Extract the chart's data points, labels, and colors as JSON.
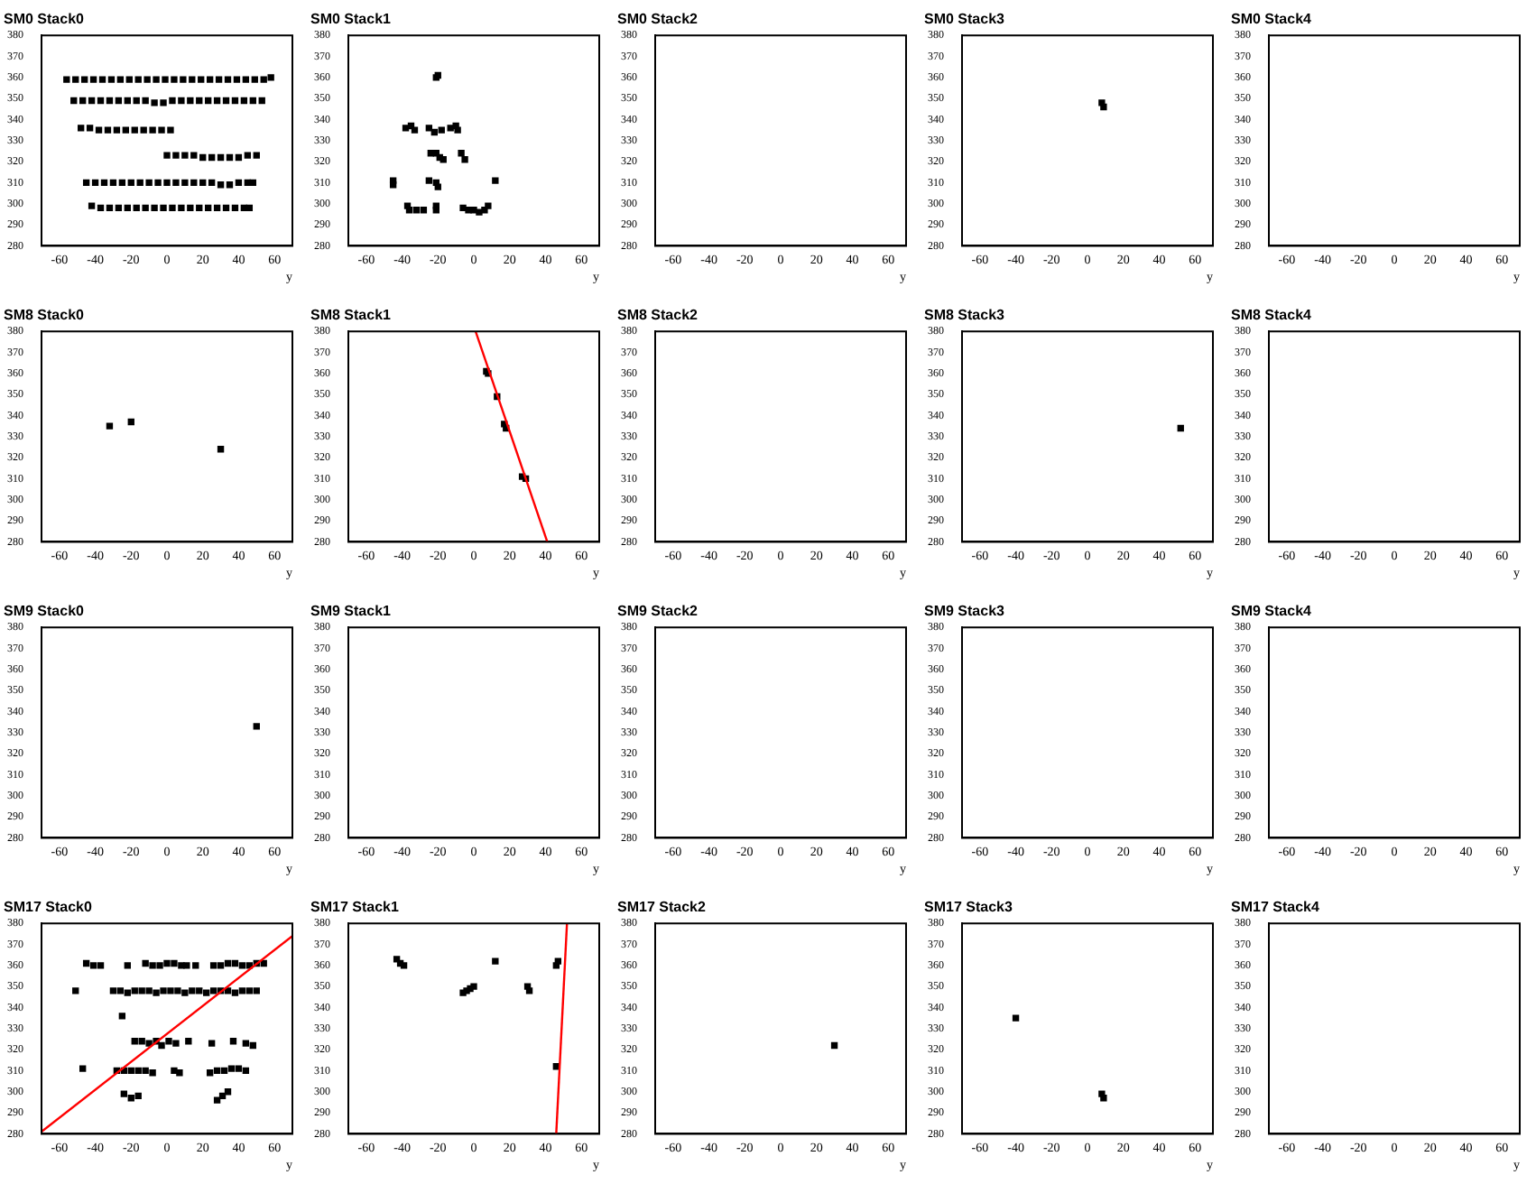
{
  "chart_data": [
    {
      "type": "scatter",
      "title": "SM0 Stack0",
      "xlabel": "y",
      "xlim": [
        -70,
        70
      ],
      "xticks": [
        -60,
        -40,
        -20,
        0,
        20,
        40,
        60
      ],
      "ylim": [
        280,
        380
      ],
      "yticks": [
        280,
        290,
        300,
        310,
        320,
        330,
        340,
        350,
        360,
        370,
        380
      ],
      "marker": "square",
      "series": [
        {
          "color": "#000000",
          "x": [
            -56,
            -51,
            -46,
            -41,
            -36,
            -31,
            -26,
            -21,
            -16,
            -11,
            -6,
            -1,
            4,
            9,
            14,
            19,
            24,
            29,
            34,
            39,
            44,
            49,
            54,
            58,
            -52,
            -47,
            -42,
            -37,
            -32,
            -27,
            -22,
            -17,
            -12,
            -7,
            -2,
            3,
            8,
            13,
            18,
            23,
            28,
            33,
            38,
            43,
            48,
            53,
            -48,
            -43,
            -38,
            -33,
            -28,
            -23,
            -18,
            -13,
            -8,
            -3,
            2,
            0,
            5,
            10,
            15,
            20,
            25,
            30,
            35,
            40,
            45,
            50,
            -45,
            -40,
            -35,
            -30,
            -25,
            -20,
            -15,
            -10,
            -5,
            0,
            5,
            10,
            15,
            20,
            25,
            30,
            35,
            40,
            45,
            48,
            -42,
            -37,
            -32,
            -27,
            -22,
            -17,
            -12,
            -7,
            -2,
            3,
            8,
            13,
            18,
            23,
            28,
            33,
            38,
            43,
            46
          ],
          "values": [
            359,
            359,
            359,
            359,
            359,
            359,
            359,
            359,
            359,
            359,
            359,
            359,
            359,
            359,
            359,
            359,
            359,
            359,
            359,
            359,
            359,
            359,
            359,
            360,
            349,
            349,
            349,
            349,
            349,
            349,
            349,
            349,
            349,
            348,
            348,
            349,
            349,
            349,
            349,
            349,
            349,
            349,
            349,
            349,
            349,
            349,
            336,
            336,
            335,
            335,
            335,
            335,
            335,
            335,
            335,
            335,
            335,
            323,
            323,
            323,
            323,
            322,
            322,
            322,
            322,
            322,
            323,
            323,
            310,
            310,
            310,
            310,
            310,
            310,
            310,
            310,
            310,
            310,
            310,
            310,
            310,
            310,
            310,
            309,
            309,
            310,
            310,
            310,
            299,
            298,
            298,
            298,
            298,
            298,
            298,
            298,
            298,
            298,
            298,
            298,
            298,
            298,
            298,
            298,
            298,
            298,
            298
          ]
        }
      ]
    },
    {
      "type": "scatter",
      "title": "SM0 Stack1",
      "xlabel": "y",
      "xlim": [
        -70,
        70
      ],
      "xticks": [
        -60,
        -40,
        -20,
        0,
        20,
        40,
        60
      ],
      "ylim": [
        280,
        380
      ],
      "yticks": [
        280,
        290,
        300,
        310,
        320,
        330,
        340,
        350,
        360,
        370,
        380
      ],
      "marker": "square",
      "series": [
        {
          "color": "#000000",
          "x": [
            -21,
            -20,
            -38,
            -35,
            -33,
            -25,
            -22,
            -18,
            -13,
            -10,
            -9,
            -24,
            -21,
            -19,
            -17,
            -7,
            -5,
            -45,
            -45,
            -25,
            -21,
            -20,
            12,
            -37,
            -36,
            -32,
            -28,
            -21,
            -21,
            -6,
            -3,
            0,
            3,
            6,
            8
          ],
          "values": [
            360,
            361,
            336,
            337,
            335,
            336,
            334,
            335,
            336,
            337,
            335,
            324,
            324,
            322,
            321,
            324,
            321,
            311,
            309,
            311,
            310,
            308,
            311,
            299,
            297,
            297,
            297,
            299,
            297,
            298,
            297,
            297,
            296,
            297,
            299
          ]
        }
      ]
    },
    {
      "type": "scatter",
      "title": "SM0 Stack2",
      "xlabel": "y",
      "xlim": [
        -70,
        70
      ],
      "xticks": [
        -60,
        -40,
        -20,
        0,
        20,
        40,
        60
      ],
      "ylim": [
        280,
        380
      ],
      "yticks": [
        280,
        290,
        300,
        310,
        320,
        330,
        340,
        350,
        360,
        370,
        380
      ]
    },
    {
      "type": "scatter",
      "title": "SM0 Stack3",
      "xlabel": "y",
      "xlim": [
        -70,
        70
      ],
      "xticks": [
        -60,
        -40,
        -20,
        0,
        20,
        40,
        60
      ],
      "ylim": [
        280,
        380
      ],
      "yticks": [
        280,
        290,
        300,
        310,
        320,
        330,
        340,
        350,
        360,
        370,
        380
      ],
      "marker": "square",
      "series": [
        {
          "color": "#000000",
          "x": [
            8,
            9
          ],
          "values": [
            348,
            346
          ]
        }
      ]
    },
    {
      "type": "scatter",
      "title": "SM0 Stack4",
      "xlabel": "y",
      "xlim": [
        -70,
        70
      ],
      "xticks": [
        -60,
        -40,
        -20,
        0,
        20,
        40,
        60
      ],
      "ylim": [
        280,
        380
      ],
      "yticks": [
        280,
        290,
        300,
        310,
        320,
        330,
        340,
        350,
        360,
        370,
        380
      ]
    },
    {
      "type": "scatter",
      "title": "SM8 Stack0",
      "xlabel": "y",
      "xlim": [
        -70,
        70
      ],
      "xticks": [
        -60,
        -40,
        -20,
        0,
        20,
        40,
        60
      ],
      "ylim": [
        280,
        380
      ],
      "yticks": [
        280,
        290,
        300,
        310,
        320,
        330,
        340,
        350,
        360,
        370,
        380
      ],
      "marker": "square",
      "series": [
        {
          "color": "#000000",
          "x": [
            -32,
            -20,
            30
          ],
          "values": [
            335,
            337,
            324
          ]
        }
      ]
    },
    {
      "type": "scatter",
      "title": "SM8 Stack1",
      "xlabel": "y",
      "xlim": [
        -70,
        70
      ],
      "xticks": [
        -60,
        -40,
        -20,
        0,
        20,
        40,
        60
      ],
      "ylim": [
        280,
        380
      ],
      "yticks": [
        280,
        290,
        300,
        310,
        320,
        330,
        340,
        350,
        360,
        370,
        380
      ],
      "marker": "square",
      "series": [
        {
          "color": "#000000",
          "x": [
            7,
            8,
            13,
            17,
            18,
            27,
            29
          ],
          "values": [
            361,
            360,
            349,
            336,
            334,
            311,
            310
          ]
        },
        {
          "type": "line",
          "color": "#ff0000",
          "marker": "none",
          "x": [
            1,
            41
          ],
          "values": [
            380,
            280
          ]
        }
      ]
    },
    {
      "type": "scatter",
      "title": "SM8 Stack2",
      "xlabel": "y",
      "xlim": [
        -70,
        70
      ],
      "xticks": [
        -60,
        -40,
        -20,
        0,
        20,
        40,
        60
      ],
      "ylim": [
        280,
        380
      ],
      "yticks": [
        280,
        290,
        300,
        310,
        320,
        330,
        340,
        350,
        360,
        370,
        380
      ]
    },
    {
      "type": "scatter",
      "title": "SM8 Stack3",
      "xlabel": "y",
      "xlim": [
        -70,
        70
      ],
      "xticks": [
        -60,
        -40,
        -20,
        0,
        20,
        40,
        60
      ],
      "ylim": [
        280,
        380
      ],
      "yticks": [
        280,
        290,
        300,
        310,
        320,
        330,
        340,
        350,
        360,
        370,
        380
      ],
      "marker": "square",
      "series": [
        {
          "color": "#000000",
          "x": [
            52
          ],
          "values": [
            334
          ]
        }
      ]
    },
    {
      "type": "scatter",
      "title": "SM8 Stack4",
      "xlabel": "y",
      "xlim": [
        -70,
        70
      ],
      "xticks": [
        -60,
        -40,
        -20,
        0,
        20,
        40,
        60
      ],
      "ylim": [
        280,
        380
      ],
      "yticks": [
        280,
        290,
        300,
        310,
        320,
        330,
        340,
        350,
        360,
        370,
        380
      ]
    },
    {
      "type": "scatter",
      "title": "SM9 Stack0",
      "xlabel": "y",
      "xlim": [
        -70,
        70
      ],
      "xticks": [
        -60,
        -40,
        -20,
        0,
        20,
        40,
        60
      ],
      "ylim": [
        280,
        380
      ],
      "yticks": [
        280,
        290,
        300,
        310,
        320,
        330,
        340,
        350,
        360,
        370,
        380
      ],
      "marker": "square",
      "series": [
        {
          "color": "#000000",
          "x": [
            50
          ],
          "values": [
            333
          ]
        }
      ]
    },
    {
      "type": "scatter",
      "title": "SM9 Stack1",
      "xlabel": "y",
      "xlim": [
        -70,
        70
      ],
      "xticks": [
        -60,
        -40,
        -20,
        0,
        20,
        40,
        60
      ],
      "ylim": [
        280,
        380
      ],
      "yticks": [
        280,
        290,
        300,
        310,
        320,
        330,
        340,
        350,
        360,
        370,
        380
      ]
    },
    {
      "type": "scatter",
      "title": "SM9 Stack2",
      "xlabel": "y",
      "xlim": [
        -70,
        70
      ],
      "xticks": [
        -60,
        -40,
        -20,
        0,
        20,
        40,
        60
      ],
      "ylim": [
        280,
        380
      ],
      "yticks": [
        280,
        290,
        300,
        310,
        320,
        330,
        340,
        350,
        360,
        370,
        380
      ]
    },
    {
      "type": "scatter",
      "title": "SM9 Stack3",
      "xlabel": "y",
      "xlim": [
        -70,
        70
      ],
      "xticks": [
        -60,
        -40,
        -20,
        0,
        20,
        40,
        60
      ],
      "ylim": [
        280,
        380
      ],
      "yticks": [
        280,
        290,
        300,
        310,
        320,
        330,
        340,
        350,
        360,
        370,
        380
      ]
    },
    {
      "type": "scatter",
      "title": "SM9 Stack4",
      "xlabel": "y",
      "xlim": [
        -70,
        70
      ],
      "xticks": [
        -60,
        -40,
        -20,
        0,
        20,
        40,
        60
      ],
      "ylim": [
        280,
        380
      ],
      "yticks": [
        280,
        290,
        300,
        310,
        320,
        330,
        340,
        350,
        360,
        370,
        380
      ]
    },
    {
      "type": "scatter",
      "title": "SM17 Stack0",
      "xlabel": "y",
      "xlim": [
        -70,
        70
      ],
      "xticks": [
        -60,
        -40,
        -20,
        0,
        20,
        40,
        60
      ],
      "ylim": [
        280,
        380
      ],
      "yticks": [
        280,
        290,
        300,
        310,
        320,
        330,
        340,
        350,
        360,
        370,
        380
      ],
      "marker": "square",
      "series": [
        {
          "color": "#000000",
          "x": [
            -45,
            -41,
            -37,
            -22,
            -12,
            -8,
            -4,
            0,
            4,
            8,
            11,
            16,
            26,
            30,
            34,
            38,
            42,
            46,
            50,
            54,
            -51,
            -30,
            -26,
            -22,
            -18,
            -14,
            -10,
            -6,
            -2,
            2,
            6,
            10,
            14,
            18,
            22,
            26,
            30,
            34,
            38,
            42,
            46,
            50,
            -25,
            -18,
            -14,
            -10,
            -6,
            -3,
            1,
            5,
            12,
            25,
            37,
            44,
            48,
            -47,
            -28,
            -24,
            -20,
            -16,
            -12,
            -8,
            4,
            7,
            24,
            28,
            32,
            36,
            40,
            44,
            -24,
            -20,
            -16,
            28,
            31,
            34
          ],
          "values": [
            361,
            360,
            360,
            360,
            361,
            360,
            360,
            361,
            361,
            360,
            360,
            360,
            360,
            360,
            361,
            361,
            360,
            360,
            361,
            361,
            348,
            348,
            348,
            347,
            348,
            348,
            348,
            347,
            348,
            348,
            348,
            347,
            348,
            348,
            347,
            348,
            348,
            348,
            347,
            348,
            348,
            348,
            336,
            324,
            324,
            323,
            324,
            322,
            324,
            323,
            324,
            323,
            324,
            323,
            322,
            311,
            310,
            310,
            310,
            310,
            310,
            309,
            310,
            309,
            309,
            310,
            310,
            311,
            311,
            310,
            299,
            297,
            298,
            296,
            298,
            300
          ]
        },
        {
          "type": "line",
          "color": "#ff0000",
          "marker": "none",
          "x": [
            -70,
            70
          ],
          "values": [
            281,
            374
          ]
        }
      ]
    },
    {
      "type": "scatter",
      "title": "SM17 Stack1",
      "xlabel": "y",
      "xlim": [
        -70,
        70
      ],
      "xticks": [
        -60,
        -40,
        -20,
        0,
        20,
        40,
        60
      ],
      "ylim": [
        280,
        380
      ],
      "yticks": [
        280,
        290,
        300,
        310,
        320,
        330,
        340,
        350,
        360,
        370,
        380
      ],
      "marker": "square",
      "series": [
        {
          "color": "#000000",
          "x": [
            -43,
            -41,
            -39,
            -6,
            -4,
            -2,
            0,
            12,
            30,
            31,
            46,
            47,
            46
          ],
          "values": [
            363,
            361,
            360,
            347,
            348,
            349,
            350,
            362,
            350,
            348,
            360,
            362,
            312
          ]
        },
        {
          "type": "line",
          "color": "#ff0000",
          "marker": "none",
          "x": [
            46,
            52
          ],
          "values": [
            280,
            380
          ]
        }
      ]
    },
    {
      "type": "scatter",
      "title": "SM17 Stack2",
      "xlabel": "y",
      "xlim": [
        -70,
        70
      ],
      "xticks": [
        -60,
        -40,
        -20,
        0,
        20,
        40,
        60
      ],
      "ylim": [
        280,
        380
      ],
      "yticks": [
        280,
        290,
        300,
        310,
        320,
        330,
        340,
        350,
        360,
        370,
        380
      ],
      "marker": "square",
      "series": [
        {
          "color": "#000000",
          "x": [
            30
          ],
          "values": [
            322
          ]
        }
      ]
    },
    {
      "type": "scatter",
      "title": "SM17 Stack3",
      "xlabel": "y",
      "xlim": [
        -70,
        70
      ],
      "xticks": [
        -60,
        -40,
        -20,
        0,
        20,
        40,
        60
      ],
      "ylim": [
        280,
        380
      ],
      "yticks": [
        280,
        290,
        300,
        310,
        320,
        330,
        340,
        350,
        360,
        370,
        380
      ],
      "marker": "square",
      "series": [
        {
          "color": "#000000",
          "x": [
            -40,
            8,
            9
          ],
          "values": [
            335,
            299,
            297
          ]
        }
      ]
    },
    {
      "type": "scatter",
      "title": "SM17 Stack4",
      "xlabel": "y",
      "xlim": [
        -70,
        70
      ],
      "xticks": [
        -60,
        -40,
        -20,
        0,
        20,
        40,
        60
      ],
      "ylim": [
        280,
        380
      ],
      "yticks": [
        280,
        290,
        300,
        310,
        320,
        330,
        340,
        350,
        360,
        370,
        380
      ]
    }
  ]
}
